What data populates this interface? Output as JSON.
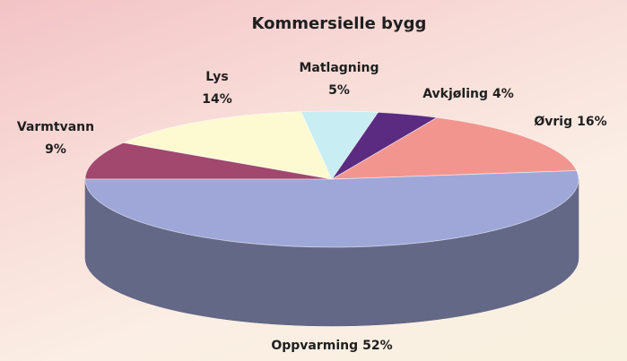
{
  "chart_data": {
    "type": "pie3d",
    "title": "Kommersielle bygg",
    "categories": [
      "Oppvarming",
      "Varmtvann",
      "Lys",
      "Matlagning",
      "Avkjøling",
      "Øvrig"
    ],
    "values": [
      52,
      9,
      14,
      5,
      4,
      16
    ],
    "value_labels": [
      "52%",
      "9%",
      "14%",
      "5%",
      "4%",
      "16%"
    ],
    "colors": [
      "#9fa7d9",
      "#a2476d",
      "#fdfad2",
      "#c8edf3",
      "#5b2b82",
      "#f3958f"
    ]
  }
}
